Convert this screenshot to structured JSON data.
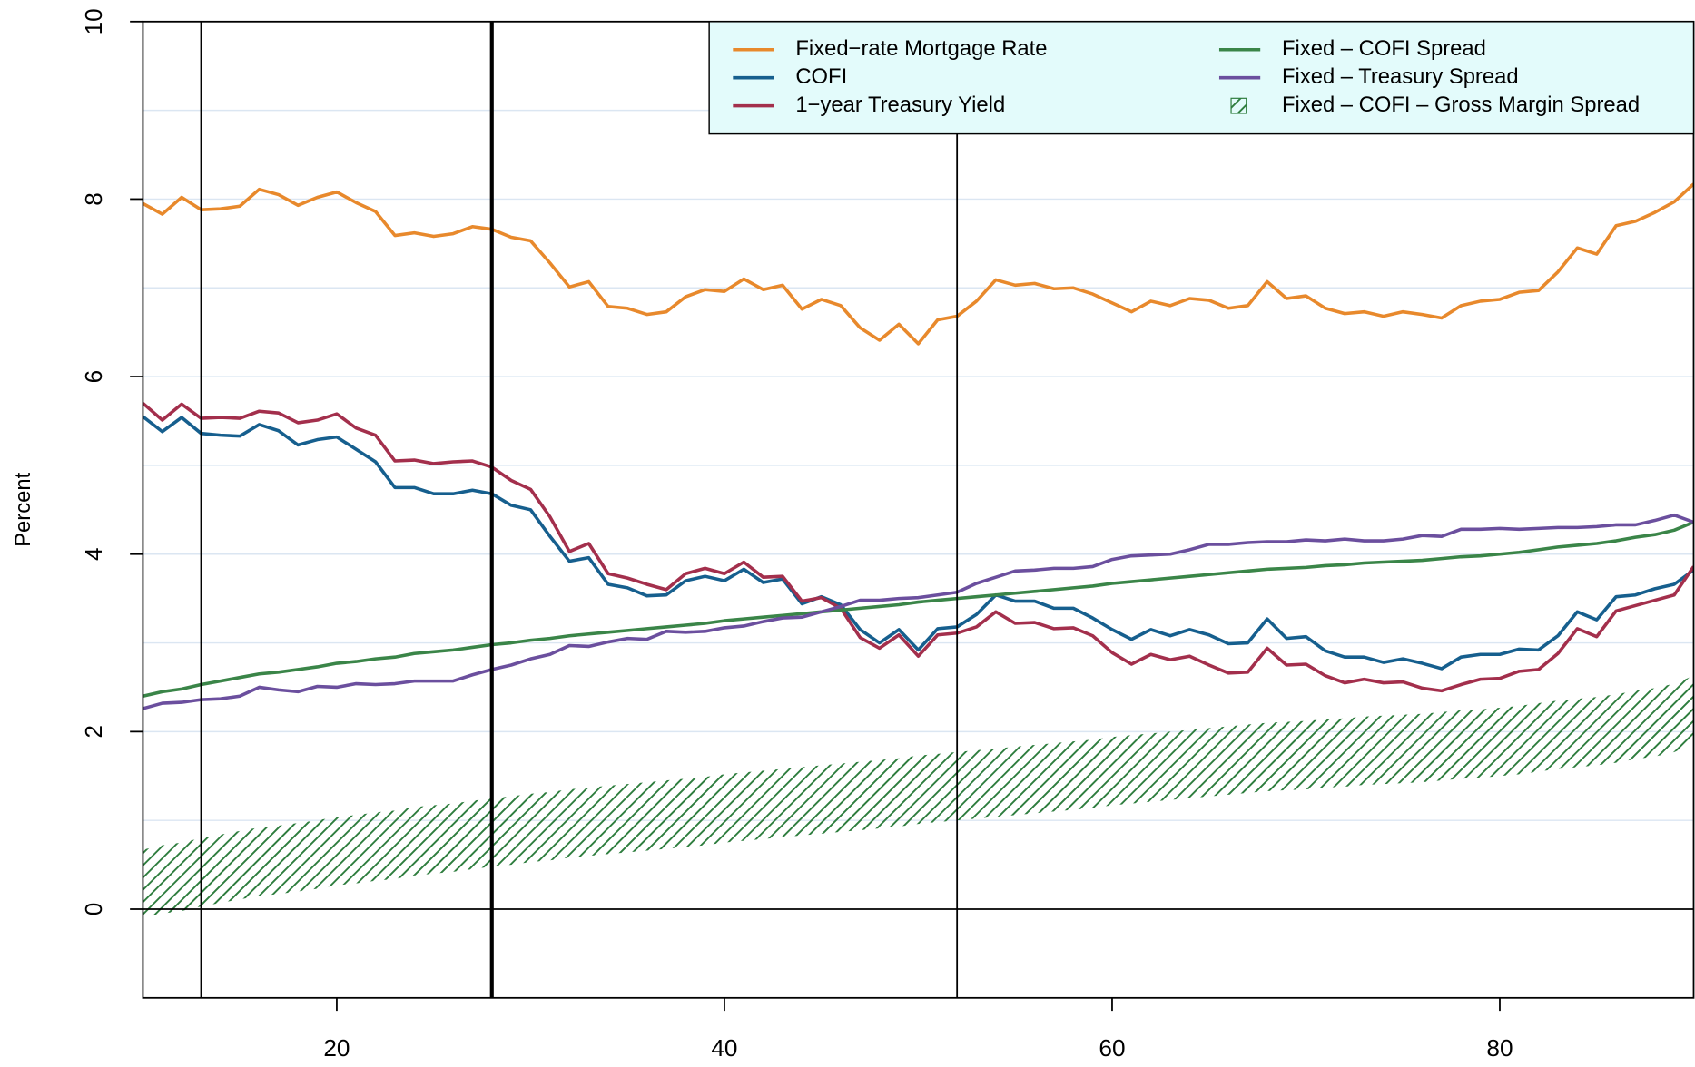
{
  "chart_data": {
    "type": "line",
    "ylabel": "Percent",
    "x": [
      10,
      11,
      12,
      13,
      14,
      15,
      16,
      17,
      18,
      19,
      20,
      21,
      22,
      23,
      24,
      25,
      26,
      27,
      28,
      29,
      30,
      31,
      32,
      33,
      34,
      35,
      36,
      37,
      38,
      39,
      40,
      41,
      42,
      43,
      44,
      45,
      46,
      47,
      48,
      49,
      50,
      51,
      52,
      53,
      54,
      55,
      56,
      57,
      58,
      59,
      60,
      61,
      62,
      63,
      64,
      65,
      66,
      67,
      68,
      69,
      70,
      71,
      72,
      73,
      74,
      75,
      76,
      77,
      78,
      79,
      80,
      81,
      82,
      83,
      84,
      85,
      86,
      87,
      88,
      89,
      90
    ],
    "xlim": [
      10,
      90
    ],
    "xticks": [
      20,
      40,
      60,
      80
    ],
    "ylim": [
      -1,
      10
    ],
    "yticks": [
      0,
      2,
      4,
      6,
      8,
      10
    ],
    "ygrid": [
      1,
      2,
      3,
      4,
      5,
      6,
      7,
      8,
      9
    ],
    "grid_color": "#dbe6f2",
    "hline": 0,
    "vlines": [
      {
        "x": 13,
        "style": "thin"
      },
      {
        "x": 28,
        "style": "bold"
      },
      {
        "x": 52,
        "style": "thin"
      }
    ],
    "legend": "top-right",
    "legend_fill": "#e3fbfb",
    "series": [
      {
        "name": "Fixed−rate Mortgage Rate",
        "color": "#e8892c",
        "values": [
          7.95,
          7.83,
          8.02,
          7.88,
          7.89,
          7.92,
          8.11,
          8.05,
          7.93,
          8.02,
          8.08,
          7.96,
          7.86,
          7.59,
          7.62,
          7.58,
          7.61,
          7.69,
          7.66,
          7.57,
          7.53,
          7.28,
          7.01,
          7.07,
          6.79,
          6.77,
          6.7,
          6.73,
          6.9,
          6.98,
          6.96,
          7.1,
          6.98,
          7.03,
          6.76,
          6.87,
          6.8,
          6.55,
          6.41,
          6.59,
          6.37,
          6.64,
          6.68,
          6.85,
          7.09,
          7.03,
          7.05,
          6.99,
          7.0,
          6.93,
          6.83,
          6.73,
          6.85,
          6.8,
          6.88,
          6.86,
          6.77,
          6.8,
          7.07,
          6.88,
          6.91,
          6.77,
          6.71,
          6.73,
          6.68,
          6.73,
          6.7,
          6.66,
          6.8,
          6.85,
          6.87,
          6.95,
          6.97,
          7.18,
          7.45,
          7.38,
          7.7,
          7.75,
          7.85,
          7.97,
          8.17
        ]
      },
      {
        "name": "COFI",
        "color": "#165f8e",
        "values": [
          5.55,
          5.38,
          5.54,
          5.36,
          5.34,
          5.33,
          5.46,
          5.39,
          5.23,
          5.29,
          5.32,
          5.18,
          5.04,
          4.75,
          4.75,
          4.68,
          4.68,
          4.72,
          4.68,
          4.55,
          4.5,
          4.2,
          3.92,
          3.96,
          3.66,
          3.62,
          3.53,
          3.54,
          3.7,
          3.75,
          3.7,
          3.83,
          3.68,
          3.72,
          3.44,
          3.52,
          3.43,
          3.15,
          3.0,
          3.15,
          2.92,
          3.16,
          3.18,
          3.32,
          3.54,
          3.47,
          3.47,
          3.39,
          3.39,
          3.28,
          3.15,
          3.04,
          3.15,
          3.08,
          3.15,
          3.09,
          2.99,
          3.0,
          3.27,
          3.05,
          3.07,
          2.91,
          2.84,
          2.84,
          2.78,
          2.82,
          2.77,
          2.71,
          2.84,
          2.87,
          2.87,
          2.93,
          2.92,
          3.08,
          3.35,
          3.26,
          3.52,
          3.54,
          3.61,
          3.66,
          3.82
        ]
      },
      {
        "name": "1−year Treasury Yield",
        "color": "#a32f4c",
        "values": [
          5.7,
          5.51,
          5.69,
          5.53,
          5.54,
          5.53,
          5.61,
          5.59,
          5.48,
          5.51,
          5.58,
          5.42,
          5.34,
          5.05,
          5.06,
          5.02,
          5.04,
          5.05,
          4.98,
          4.83,
          4.73,
          4.42,
          4.03,
          4.12,
          3.78,
          3.73,
          3.66,
          3.6,
          3.78,
          3.84,
          3.78,
          3.91,
          3.74,
          3.75,
          3.47,
          3.51,
          3.39,
          3.06,
          2.94,
          3.09,
          2.85,
          3.09,
          3.11,
          3.18,
          3.35,
          3.22,
          3.23,
          3.16,
          3.17,
          3.08,
          2.89,
          2.76,
          2.87,
          2.81,
          2.85,
          2.75,
          2.66,
          2.67,
          2.94,
          2.75,
          2.76,
          2.63,
          2.55,
          2.59,
          2.55,
          2.56,
          2.49,
          2.46,
          2.53,
          2.59,
          2.6,
          2.68,
          2.7,
          2.88,
          3.16,
          3.07,
          3.36,
          3.42,
          3.48,
          3.54,
          3.86
        ]
      },
      {
        "name": "Fixed – COFI Spread",
        "color": "#3a8548",
        "values": [
          2.4,
          2.45,
          2.48,
          2.53,
          2.57,
          2.61,
          2.65,
          2.67,
          2.7,
          2.73,
          2.77,
          2.79,
          2.82,
          2.84,
          2.88,
          2.9,
          2.92,
          2.95,
          2.98,
          3.0,
          3.03,
          3.05,
          3.08,
          3.1,
          3.12,
          3.14,
          3.16,
          3.18,
          3.2,
          3.22,
          3.25,
          3.27,
          3.29,
          3.31,
          3.33,
          3.35,
          3.37,
          3.39,
          3.41,
          3.43,
          3.46,
          3.48,
          3.5,
          3.52,
          3.54,
          3.56,
          3.58,
          3.6,
          3.62,
          3.64,
          3.67,
          3.69,
          3.71,
          3.73,
          3.75,
          3.77,
          3.79,
          3.81,
          3.83,
          3.84,
          3.85,
          3.87,
          3.88,
          3.9,
          3.91,
          3.92,
          3.93,
          3.95,
          3.97,
          3.98,
          4.0,
          4.02,
          4.05,
          4.08,
          4.1,
          4.12,
          4.15,
          4.19,
          4.22,
          4.27,
          4.36
        ]
      },
      {
        "name": "Fixed – Treasury Spread",
        "color": "#6b4f9e",
        "values": [
          2.26,
          2.32,
          2.33,
          2.36,
          2.37,
          2.4,
          2.5,
          2.47,
          2.45,
          2.51,
          2.5,
          2.54,
          2.53,
          2.54,
          2.57,
          2.57,
          2.57,
          2.64,
          2.7,
          2.75,
          2.82,
          2.87,
          2.97,
          2.96,
          3.01,
          3.05,
          3.04,
          3.13,
          3.12,
          3.13,
          3.17,
          3.19,
          3.24,
          3.28,
          3.29,
          3.35,
          3.41,
          3.48,
          3.48,
          3.5,
          3.51,
          3.54,
          3.57,
          3.67,
          3.74,
          3.81,
          3.82,
          3.84,
          3.84,
          3.86,
          3.94,
          3.98,
          3.99,
          4.0,
          4.05,
          4.11,
          4.11,
          4.13,
          4.14,
          4.14,
          4.16,
          4.15,
          4.17,
          4.15,
          4.15,
          4.17,
          4.21,
          4.2,
          4.28,
          4.28,
          4.29,
          4.28,
          4.29,
          4.3,
          4.3,
          4.31,
          4.33,
          4.33,
          4.38,
          4.44,
          4.36
        ]
      },
      {
        "name": "Fixed – COFI – Gross Margin Spread",
        "color": "#2e7d3e",
        "type": "band",
        "high": [
          0.67,
          0.72,
          0.75,
          0.8,
          0.84,
          0.88,
          0.92,
          0.94,
          0.97,
          1.0,
          1.04,
          1.06,
          1.09,
          1.11,
          1.15,
          1.17,
          1.19,
          1.22,
          1.25,
          1.27,
          1.3,
          1.32,
          1.35,
          1.37,
          1.39,
          1.41,
          1.43,
          1.45,
          1.47,
          1.49,
          1.52,
          1.54,
          1.56,
          1.58,
          1.6,
          1.62,
          1.64,
          1.66,
          1.68,
          1.7,
          1.73,
          1.75,
          1.77,
          1.79,
          1.81,
          1.83,
          1.85,
          1.87,
          1.89,
          1.91,
          1.94,
          1.96,
          1.98,
          2.0,
          2.02,
          2.04,
          2.06,
          2.08,
          2.1,
          2.11,
          2.12,
          2.14,
          2.15,
          2.17,
          2.18,
          2.19,
          2.2,
          2.22,
          2.24,
          2.25,
          2.27,
          2.29,
          2.32,
          2.35,
          2.37,
          2.39,
          2.42,
          2.46,
          2.49,
          2.54,
          2.63
        ],
        "low": [
          -0.1,
          -0.05,
          -0.02,
          0.03,
          0.07,
          0.11,
          0.15,
          0.17,
          0.2,
          0.23,
          0.27,
          0.29,
          0.32,
          0.34,
          0.38,
          0.4,
          0.42,
          0.45,
          0.48,
          0.5,
          0.53,
          0.55,
          0.58,
          0.6,
          0.62,
          0.64,
          0.66,
          0.68,
          0.7,
          0.72,
          0.75,
          0.77,
          0.79,
          0.81,
          0.83,
          0.85,
          0.87,
          0.89,
          0.91,
          0.93,
          0.96,
          0.98,
          1.0,
          1.02,
          1.04,
          1.06,
          1.08,
          1.1,
          1.12,
          1.14,
          1.17,
          1.19,
          1.21,
          1.23,
          1.25,
          1.27,
          1.29,
          1.31,
          1.33,
          1.34,
          1.35,
          1.37,
          1.38,
          1.4,
          1.41,
          1.42,
          1.43,
          1.45,
          1.47,
          1.48,
          1.5,
          1.52,
          1.55,
          1.58,
          1.6,
          1.62,
          1.65,
          1.69,
          1.72,
          1.77,
          1.86
        ]
      }
    ]
  }
}
